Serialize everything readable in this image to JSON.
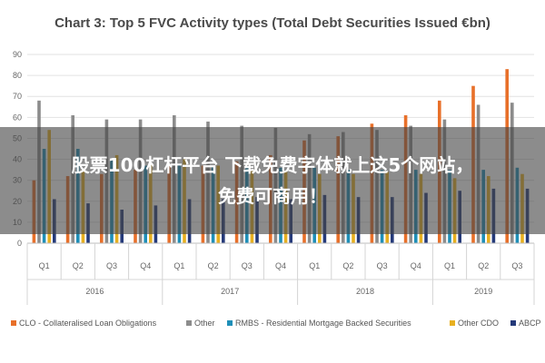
{
  "chart_data": {
    "type": "bar",
    "title": "Chart 3: Top 5 FVC Activity types (Total Debt Securities Issued €bn)",
    "ylim": [
      0,
      90
    ],
    "yticks": [
      0,
      10,
      20,
      30,
      40,
      50,
      60,
      70,
      80,
      90
    ],
    "grid": true,
    "legend_position": "bottom",
    "categories": [
      "Q1",
      "Q2",
      "Q3",
      "Q4",
      "Q1",
      "Q2",
      "Q3",
      "Q4",
      "Q1",
      "Q2",
      "Q3",
      "Q4",
      "Q1",
      "Q2",
      "Q3"
    ],
    "years": [
      {
        "label": "2016",
        "span": 4
      },
      {
        "label": "2017",
        "span": 4
      },
      {
        "label": "2018",
        "span": 4
      },
      {
        "label": "2019",
        "span": 3
      }
    ],
    "series": [
      {
        "name": "CLO - Collateralised Loan Obligations",
        "color": "#e8702a",
        "values": [
          30,
          32,
          33,
          35,
          37,
          37,
          39,
          42,
          49,
          51,
          57,
          61,
          68,
          75,
          83
        ]
      },
      {
        "name": "Other",
        "color": "#8c8c8c",
        "values": [
          68,
          61,
          59,
          59,
          61,
          58,
          56,
          55,
          52,
          53,
          54,
          56,
          59,
          66,
          67
        ]
      },
      {
        "name": "RMBS - Residential Mortgage Backed Securities",
        "color": "#1f8fb8",
        "values": [
          45,
          45,
          40,
          37,
          38,
          37,
          36,
          36,
          36,
          35,
          35,
          35,
          35,
          35,
          36
        ]
      },
      {
        "name": "Other CDO",
        "color": "#e8b020",
        "values": [
          54,
          35,
          42,
          38,
          40,
          37,
          35,
          34,
          33,
          33,
          34,
          33,
          31,
          32,
          33
        ]
      },
      {
        "name": "ABCP",
        "color": "#253a7a",
        "values": [
          21,
          19,
          16,
          18,
          21,
          21,
          22,
          21,
          23,
          22,
          22,
          24,
          25,
          26,
          26
        ]
      }
    ]
  },
  "overlay": {
    "line1": "股票100杠杆平台 下载免费字体就上这5个网站，",
    "line2": "免费可商用！"
  }
}
